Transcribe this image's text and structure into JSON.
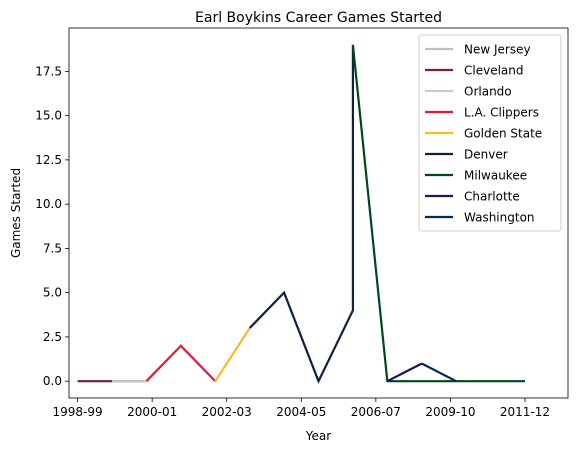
{
  "chart_data": {
    "type": "line",
    "title": "Earl Boykins Career Games Started",
    "xlabel": "Year",
    "ylabel": "Games Started",
    "x_ticks": [
      "1998-99",
      "2000-01",
      "2002-03",
      "2004-05",
      "2006-07",
      "2009-10",
      "2011-12"
    ],
    "y_ticks": [
      "0.0",
      "2.5",
      "5.0",
      "7.5",
      "10.0",
      "12.5",
      "15.0",
      "17.5"
    ],
    "xlim": [
      1997.75,
      2012.25
    ],
    "ylim": [
      -0.95,
      19.95
    ],
    "grid": false,
    "legend_position": "top-right",
    "series": [
      {
        "name": "New Jersey",
        "color": "#BEC0C2",
        "points": [
          [
            1998,
            0
          ],
          [
            1999,
            0
          ]
        ]
      },
      {
        "name": "Cleveland",
        "color": "#6F263D",
        "points": [
          [
            1998,
            0
          ],
          [
            2000,
            0
          ]
        ]
      },
      {
        "name": "Orlando",
        "color": "#C4CED4",
        "points": [
          [
            1999,
            0
          ],
          [
            2000,
            0
          ]
        ]
      },
      {
        "name": "L.A. Clippers",
        "color": "#E31837",
        "points": [
          [
            2000,
            0
          ],
          [
            2001,
            2
          ],
          [
            2002,
            0
          ]
        ]
      },
      {
        "name": "Golden State",
        "color": "#FDB927",
        "points": [
          [
            2002,
            0
          ],
          [
            2003,
            3
          ]
        ]
      },
      {
        "name": "Denver",
        "color": "#0E2240",
        "points": [
          [
            2003,
            3
          ],
          [
            2004,
            5
          ],
          [
            2005,
            0
          ],
          [
            2006,
            4
          ],
          [
            2006,
            19
          ]
        ]
      },
      {
        "name": "Milwaukee",
        "color": "#00471B",
        "points": [
          [
            2006,
            19
          ],
          [
            2007,
            0
          ],
          [
            2010,
            0
          ],
          [
            2011,
            0
          ]
        ]
      },
      {
        "name": "Charlotte",
        "color": "#1D1160",
        "points": [
          [
            2007,
            0
          ],
          [
            2008,
            1
          ]
        ]
      },
      {
        "name": "Washington",
        "color": "#002B5C",
        "points": [
          [
            2008,
            1
          ],
          [
            2009,
            0
          ]
        ]
      }
    ]
  }
}
